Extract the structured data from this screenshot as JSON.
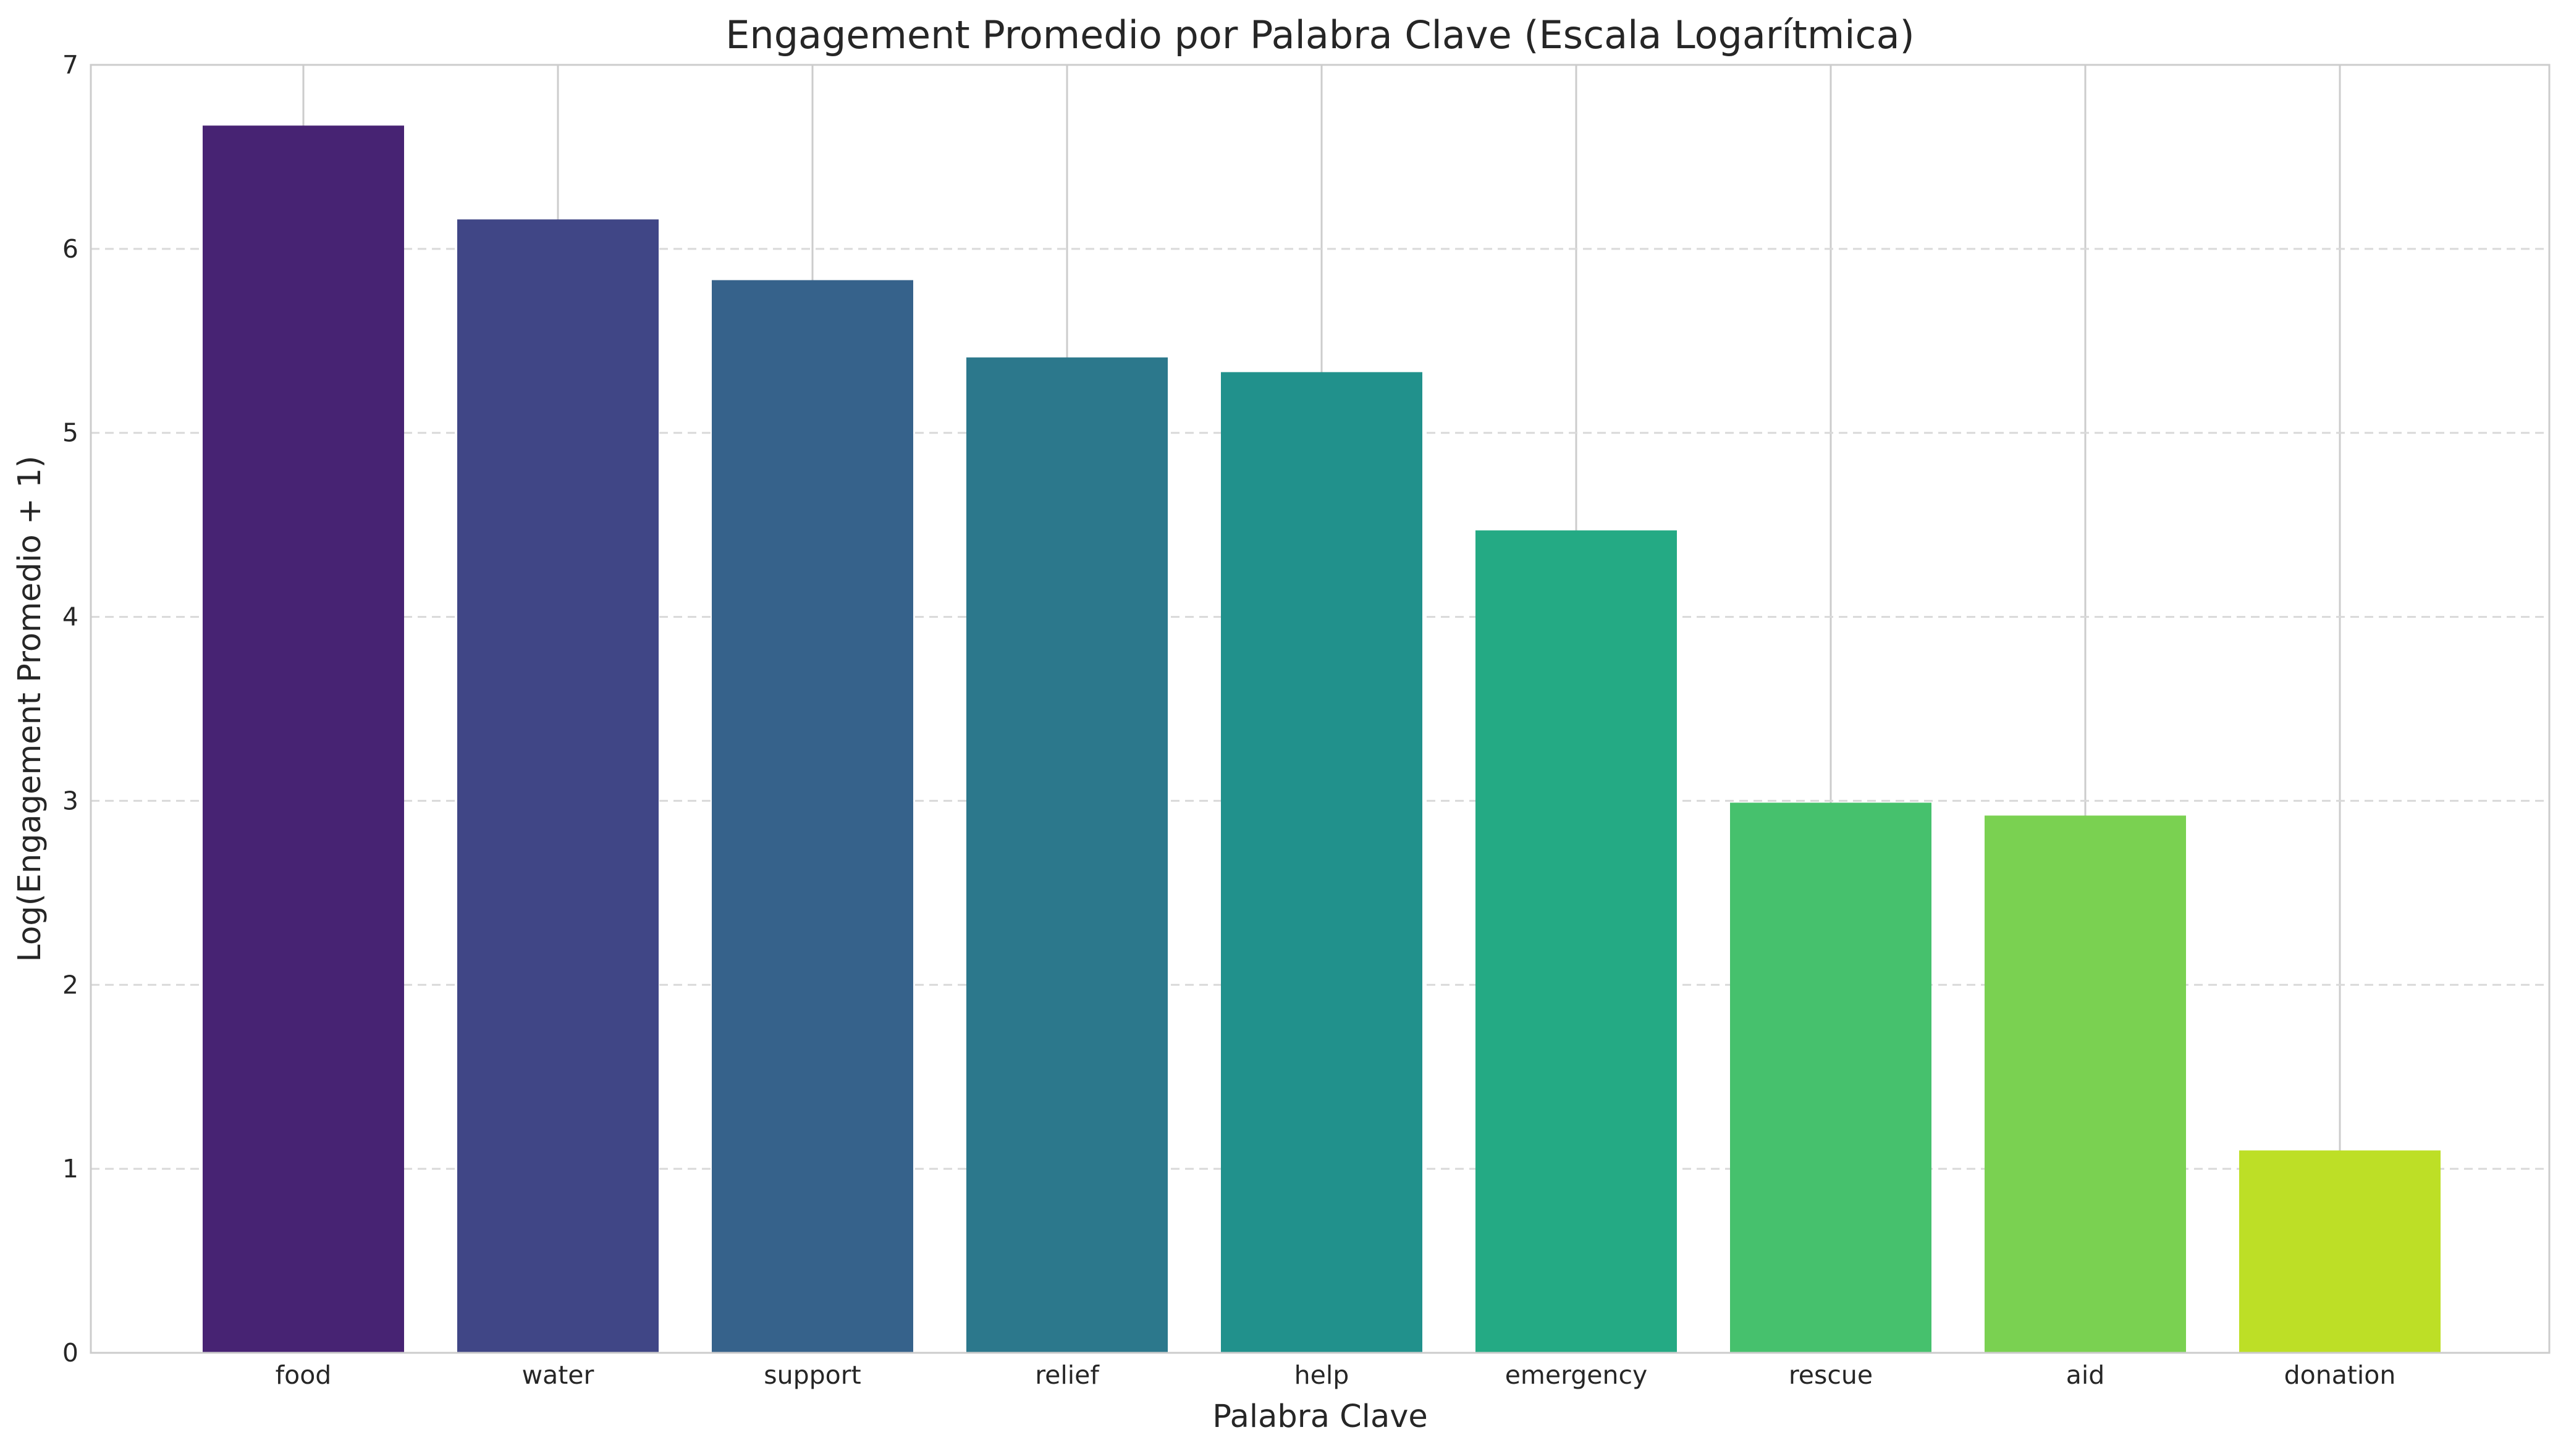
{
  "chart_data": {
    "type": "bar",
    "title": "Engagement Promedio por Palabra Clave (Escala Logarítmica)",
    "xlabel": "Palabra Clave",
    "ylabel": "Log(Engagement Promedio + 1)",
    "categories": [
      "food",
      "water",
      "support",
      "relief",
      "help",
      "emergency",
      "rescue",
      "aid",
      "donation"
    ],
    "values": [
      6.67,
      6.16,
      5.83,
      5.41,
      5.33,
      4.47,
      2.99,
      2.92,
      1.1
    ],
    "colors": [
      "#472373",
      "#404686",
      "#36628b",
      "#2c788c",
      "#21918c",
      "#24aa84",
      "#46c16d",
      "#7ad151",
      "#bddf26"
    ],
    "ylim": [
      0,
      7
    ],
    "yticks": [
      "0",
      "1",
      "2",
      "3",
      "4",
      "5",
      "6",
      "7"
    ],
    "grid": true,
    "legend": "none"
  }
}
